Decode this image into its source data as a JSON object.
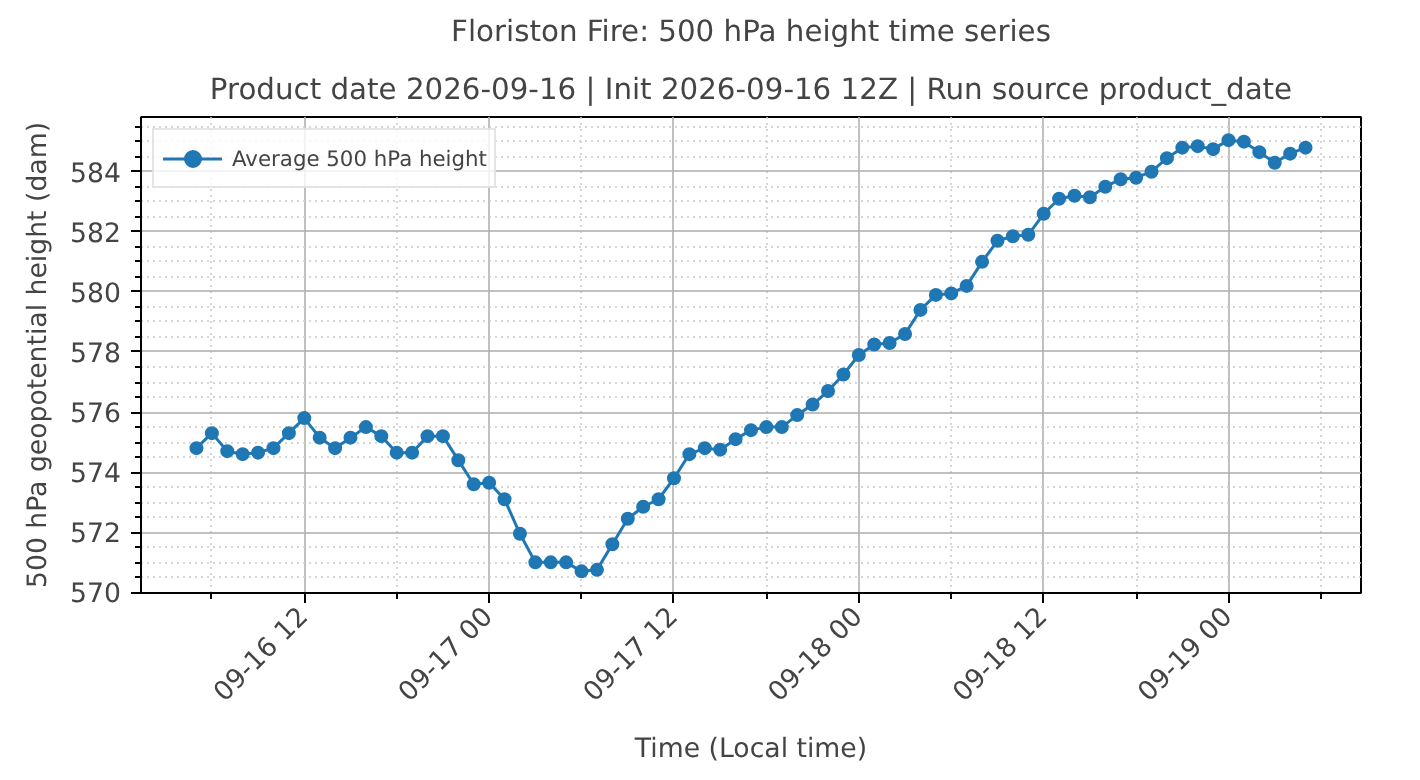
{
  "chart_data": {
    "type": "line",
    "title": "Floriston Fire: 500 hPa height time series",
    "subtitle": "Product date 2026-09-16 | Init 2026-09-16 12Z | Run source product_date",
    "xlabel": "Time (Local time)",
    "ylabel": "500 hPa geopotential height (dam)",
    "x": [
      "2026-09-16T05:00",
      "2026-09-16T06:00",
      "2026-09-16T07:00",
      "2026-09-16T08:00",
      "2026-09-16T09:00",
      "2026-09-16T10:00",
      "2026-09-16T11:00",
      "2026-09-16T12:00",
      "2026-09-16T13:00",
      "2026-09-16T14:00",
      "2026-09-16T15:00",
      "2026-09-16T16:00",
      "2026-09-16T17:00",
      "2026-09-16T18:00",
      "2026-09-16T19:00",
      "2026-09-16T20:00",
      "2026-09-16T21:00",
      "2026-09-16T22:00",
      "2026-09-16T23:00",
      "2026-09-17T00:00",
      "2026-09-17T01:00",
      "2026-09-17T02:00",
      "2026-09-17T03:00",
      "2026-09-17T04:00",
      "2026-09-17T05:00",
      "2026-09-17T06:00",
      "2026-09-17T07:00",
      "2026-09-17T08:00",
      "2026-09-17T09:00",
      "2026-09-17T10:00",
      "2026-09-17T11:00",
      "2026-09-17T12:00",
      "2026-09-17T13:00",
      "2026-09-17T14:00",
      "2026-09-17T15:00",
      "2026-09-17T16:00",
      "2026-09-17T17:00",
      "2026-09-17T18:00",
      "2026-09-17T19:00",
      "2026-09-17T20:00",
      "2026-09-17T21:00",
      "2026-09-17T22:00",
      "2026-09-17T23:00",
      "2026-09-18T00:00",
      "2026-09-18T01:00",
      "2026-09-18T02:00",
      "2026-09-18T03:00",
      "2026-09-18T04:00",
      "2026-09-18T05:00",
      "2026-09-18T06:00",
      "2026-09-18T07:00",
      "2026-09-18T08:00",
      "2026-09-18T09:00",
      "2026-09-18T10:00",
      "2026-09-18T11:00",
      "2026-09-18T12:00",
      "2026-09-18T13:00",
      "2026-09-18T14:00",
      "2026-09-18T15:00",
      "2026-09-18T16:00",
      "2026-09-18T17:00",
      "2026-09-18T18:00",
      "2026-09-18T19:00",
      "2026-09-18T20:00",
      "2026-09-18T21:00",
      "2026-09-18T22:00",
      "2026-09-18T23:00",
      "2026-09-19T00:00",
      "2026-09-19T01:00",
      "2026-09-19T02:00",
      "2026-09-19T03:00",
      "2026-09-19T04:00",
      "2026-09-19T05:00"
    ],
    "series": [
      {
        "name": "Average 500 hPa height",
        "color": "#1f77b4",
        "values": [
          574.8,
          575.3,
          574.7,
          574.6,
          574.65,
          574.8,
          575.3,
          575.8,
          575.15,
          574.8,
          575.15,
          575.5,
          575.2,
          574.65,
          574.65,
          575.2,
          575.2,
          574.4,
          573.6,
          573.65,
          573.1,
          571.95,
          571.0,
          571.0,
          571.0,
          570.7,
          570.75,
          571.6,
          572.45,
          572.85,
          573.1,
          573.8,
          574.6,
          574.8,
          574.75,
          575.1,
          575.4,
          575.5,
          575.5,
          575.9,
          576.25,
          576.7,
          577.25,
          577.9,
          578.25,
          578.3,
          578.6,
          579.4,
          579.9,
          579.95,
          580.2,
          581.0,
          581.7,
          581.85,
          581.9,
          582.6,
          583.1,
          583.2,
          583.15,
          583.5,
          583.75,
          583.8,
          584.0,
          584.45,
          584.8,
          584.85,
          584.75,
          585.05,
          585.0,
          584.65,
          584.3,
          584.6,
          584.8
        ]
      }
    ],
    "xlim": [
      "2026-09-16T01:24",
      "2026-09-19T08:36"
    ],
    "xticks": [
      {
        "value": "2026-09-16T06:00",
        "label": null
      },
      {
        "value": "2026-09-16T12:00",
        "label": "09-16 12"
      },
      {
        "value": "2026-09-16T18:00",
        "label": null
      },
      {
        "value": "2026-09-17T00:00",
        "label": "09-17 00"
      },
      {
        "value": "2026-09-17T06:00",
        "label": null
      },
      {
        "value": "2026-09-17T12:00",
        "label": "09-17 12"
      },
      {
        "value": "2026-09-17T18:00",
        "label": null
      },
      {
        "value": "2026-09-18T00:00",
        "label": "09-18 00"
      },
      {
        "value": "2026-09-18T06:00",
        "label": null
      },
      {
        "value": "2026-09-18T12:00",
        "label": "09-18 12"
      },
      {
        "value": "2026-09-18T18:00",
        "label": null
      },
      {
        "value": "2026-09-19T00:00",
        "label": "09-19 00"
      },
      {
        "value": "2026-09-19T06:00",
        "label": null
      }
    ],
    "ylim": [
      569.98,
      585.82
    ],
    "yticks": [
      570,
      {
        "value": 570.5,
        "label": null
      },
      {
        "value": 571,
        "label": null
      },
      {
        "value": 571.5,
        "label": null
      },
      572,
      {
        "value": 572.5,
        "label": null
      },
      {
        "value": 573,
        "label": null
      },
      {
        "value": 573.5,
        "label": null
      },
      574,
      {
        "value": 574.5,
        "label": null
      },
      {
        "value": 575,
        "label": null
      },
      {
        "value": 575.5,
        "label": null
      },
      576,
      {
        "value": 576.5,
        "label": null
      },
      {
        "value": 577,
        "label": null
      },
      {
        "value": 577.5,
        "label": null
      },
      578,
      {
        "value": 578.5,
        "label": null
      },
      {
        "value": 579,
        "label": null
      },
      {
        "value": 579.5,
        "label": null
      },
      580,
      {
        "value": 580.5,
        "label": null
      },
      {
        "value": 581,
        "label": null
      },
      {
        "value": 581.5,
        "label": null
      },
      582,
      {
        "value": 582.5,
        "label": null
      },
      {
        "value": 583,
        "label": null
      },
      {
        "value": 583.5,
        "label": null
      },
      584,
      {
        "value": 584.5,
        "label": null
      },
      {
        "value": 585,
        "label": null
      },
      {
        "value": 585.5,
        "label": null
      }
    ],
    "grid": true,
    "legend": "top left",
    "marker": "circle",
    "line_style": "solid"
  }
}
